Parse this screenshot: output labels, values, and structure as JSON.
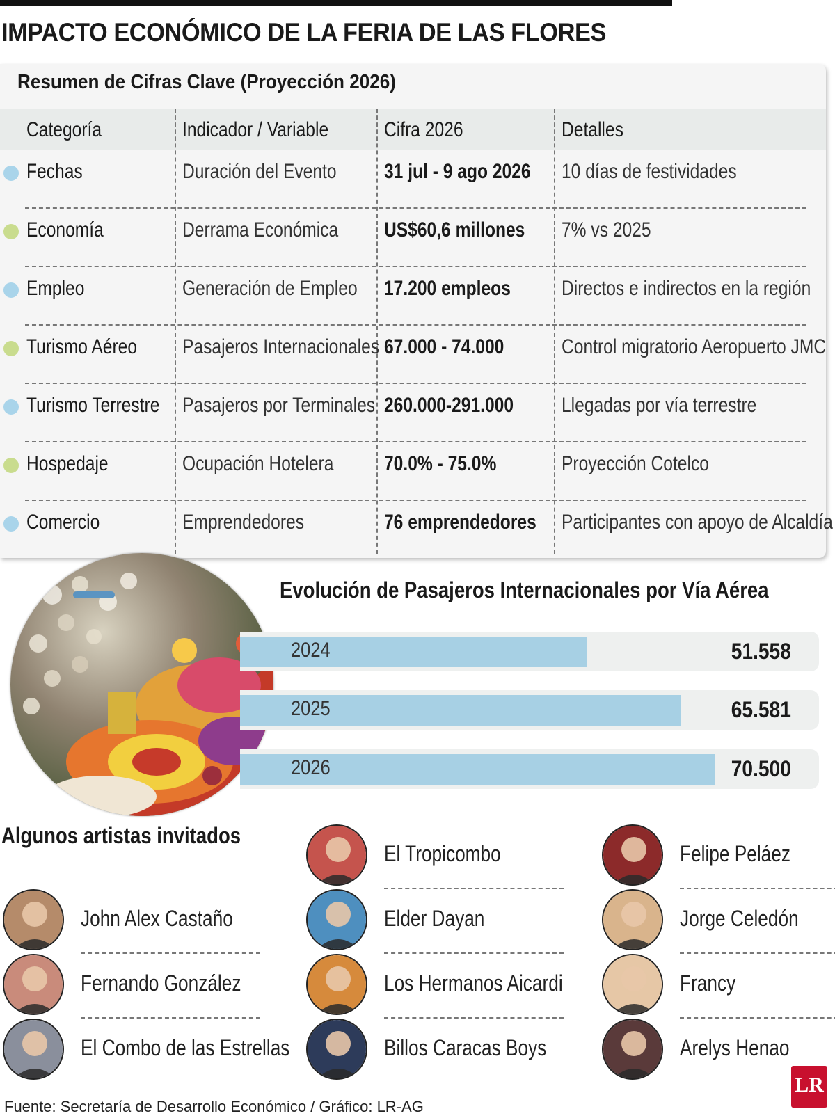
{
  "title": "IMPACTO ECONÓMICO DE LA FERIA DE LAS FLORES",
  "summary": {
    "title": "Resumen de Cifras Clave (Proyección 2026)",
    "headers": [
      "Categoría",
      "Indicador / Variable",
      "Cifra 2026",
      "Detalles"
    ],
    "rows": [
      {
        "category": "Fechas",
        "indicator": "Duración del Evento",
        "figure": "31 jul - 9 ago 2026",
        "details": "10 días de festividades",
        "dot_color": "#a9d4ea"
      },
      {
        "category": "Economía",
        "indicator": "Derrama Económica",
        "figure": "US$60,6 millones",
        "details": "7% vs 2025",
        "dot_color": "#c9dc8e"
      },
      {
        "category": "Empleo",
        "indicator": "Generación de Empleo",
        "figure": "17.200 empleos",
        "details": "Directos e indirectos en la región",
        "dot_color": "#a9d4ea"
      },
      {
        "category": "Turismo Aéreo",
        "indicator": "Pasajeros Internacionales",
        "figure": "67.000 - 74.000",
        "details": "Control migratorio Aeropuerto JMC",
        "dot_color": "#c9dc8e"
      },
      {
        "category": "Turismo Terrestre",
        "indicator": "Pasajeros por Terminales",
        "figure": "260.000-291.000",
        "details": "Llegadas por vía terrestre",
        "dot_color": "#a9d4ea"
      },
      {
        "category": "Hospedaje",
        "indicator": "Ocupación Hotelera",
        "figure": "70.0% - 75.0%",
        "details": "Proyección Cotelco",
        "dot_color": "#c9dc8e"
      },
      {
        "category": "Comercio",
        "indicator": "Emprendedores",
        "figure": "76 emprendedores",
        "details": "Participantes con apoyo de Alcaldía",
        "dot_color": "#a9d4ea"
      }
    ]
  },
  "chart_data": {
    "type": "bar",
    "orientation": "horizontal",
    "title": "Evolución de Pasajeros Internacionales por Vía Aérea",
    "categories": [
      "2024",
      "2025",
      "2026"
    ],
    "values": [
      51558,
      65581,
      70500
    ],
    "value_labels": [
      "51.558",
      "65.581",
      "70.500"
    ],
    "bar_color": "#a7d0e4",
    "track_color": "#eef0ef",
    "xlim": [
      0,
      86000
    ],
    "grid": false
  },
  "artists": {
    "title": "Algunos artistas invitados",
    "list": [
      {
        "name": "John Alex Castaño"
      },
      {
        "name": "Fernando González"
      },
      {
        "name": "El Combo de las Estrellas"
      },
      {
        "name": "El Tropicombo"
      },
      {
        "name": "Elder Dayan"
      },
      {
        "name": "Los Hermanos Aicardi"
      },
      {
        "name": "Billos Caracas Boys"
      },
      {
        "name": "Felipe Peláez"
      },
      {
        "name": "Jorge Celedón"
      },
      {
        "name": "Francy"
      },
      {
        "name": "Arelys Henao"
      }
    ]
  },
  "footer": "Fuente: Secretaría de Desarrollo Económico / Gráfico: LR-AG",
  "logo": "LR"
}
